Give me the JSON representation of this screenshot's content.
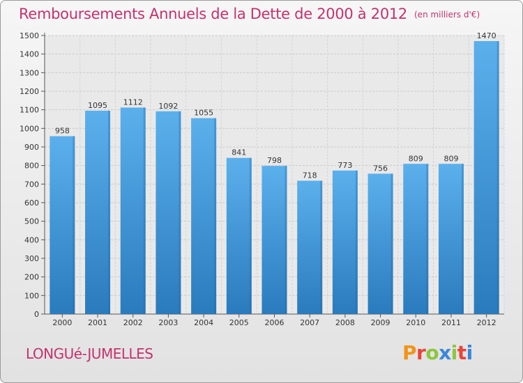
{
  "header": {
    "title": "Remboursements Annuels de la Dette de 2000 à 2012",
    "unit": "(en milliers d'€)"
  },
  "footer": {
    "town": "LONGUé-JUMELLES",
    "logo_letters": [
      "P",
      "r",
      "o",
      "x",
      "i",
      "t",
      "i"
    ]
  },
  "colors": {
    "title": "#c4326d",
    "bar_top": "#5bb0ec",
    "bar_bottom": "#2a7bbd",
    "logo": [
      "#f29418",
      "#e8443a",
      "#8cc63f",
      "#3a86d8",
      "#8cc63f",
      "#e8443a",
      "#3a86d8"
    ]
  },
  "chart_data": {
    "type": "bar",
    "title": "Remboursements Annuels de la Dette de 2000 à 2012",
    "xlabel": "",
    "ylabel": "",
    "ylim": [
      0,
      1500
    ],
    "yticks": [
      0,
      100,
      200,
      300,
      400,
      500,
      600,
      700,
      800,
      900,
      1000,
      1100,
      1200,
      1300,
      1400,
      1500
    ],
    "grid": true,
    "categories": [
      "2000",
      "2001",
      "2002",
      "2003",
      "2004",
      "2005",
      "2006",
      "2007",
      "2008",
      "2009",
      "2010",
      "2011",
      "2012"
    ],
    "values": [
      958,
      1095,
      1112,
      1092,
      1055,
      841,
      798,
      718,
      773,
      756,
      809,
      809,
      1470
    ]
  }
}
